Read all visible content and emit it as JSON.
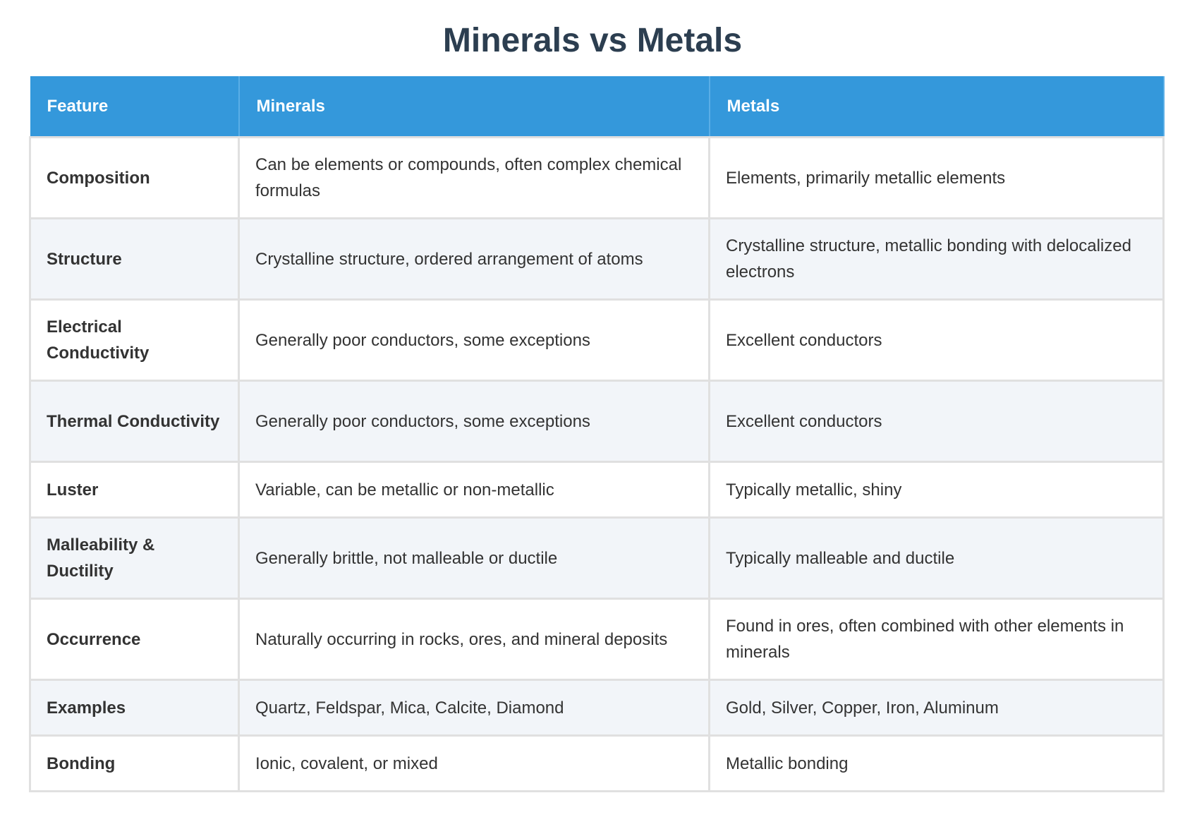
{
  "header": {
    "title": "Minerals vs Metals"
  },
  "table": {
    "headers": [
      "Feature",
      "Minerals",
      "Metals"
    ],
    "rows": [
      [
        "Composition",
        "Can be elements or compounds, often complex chemical formulas",
        "Elements, primarily metallic elements"
      ],
      [
        "Structure",
        "Crystalline structure, ordered arrangement of atoms",
        "Crystalline structure, metallic bonding with delocalized electrons"
      ],
      [
        "Electrical Conductivity",
        "Generally poor conductors, some exceptions",
        "Excellent conductors"
      ],
      [
        "Thermal Conductivity",
        "Generally poor conductors, some exceptions",
        "Excellent conductors"
      ],
      [
        "Luster",
        "Variable, can be metallic or non-metallic",
        "Typically metallic, shiny"
      ],
      [
        "Malleability & Ductility",
        "Generally brittle, not malleable or ductile",
        "Typically malleable and ductile"
      ],
      [
        "Occurrence",
        "Naturally occurring in rocks, ores, and mineral deposits",
        "Found in ores, often combined with other elements in minerals"
      ],
      [
        "Examples",
        "Quartz, Feldspar, Mica, Calcite, Diamond",
        "Gold, Silver, Copper, Iron, Aluminum"
      ],
      [
        "Bonding",
        "Ionic, covalent, or mixed",
        "Metallic bonding"
      ]
    ]
  }
}
